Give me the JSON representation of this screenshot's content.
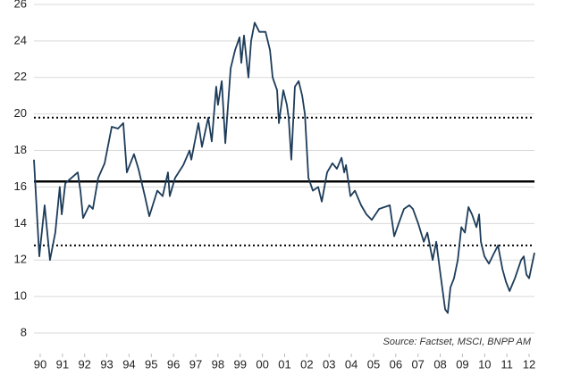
{
  "chart_data": {
    "type": "line",
    "annotation": "Source: Factset, MSCI, BNPP AM",
    "xlim": [
      1989.72,
      2012.24
    ],
    "ylim": [
      8,
      26
    ],
    "yticks": [
      8,
      10,
      12,
      14,
      16,
      18,
      20,
      22,
      24,
      26
    ],
    "xticks": [
      {
        "value": 1990,
        "label": "90"
      },
      {
        "value": 1991,
        "label": "91"
      },
      {
        "value": 1992,
        "label": "92"
      },
      {
        "value": 1993,
        "label": "93"
      },
      {
        "value": 1994,
        "label": "94"
      },
      {
        "value": 1995,
        "label": "95"
      },
      {
        "value": 1996,
        "label": "96"
      },
      {
        "value": 1997,
        "label": "97"
      },
      {
        "value": 1998,
        "label": "98"
      },
      {
        "value": 1999,
        "label": "99"
      },
      {
        "value": 2000,
        "label": "00"
      },
      {
        "value": 2001,
        "label": "01"
      },
      {
        "value": 2002,
        "label": "02"
      },
      {
        "value": 2003,
        "label": "03"
      },
      {
        "value": 2004,
        "label": "04"
      },
      {
        "value": 2005,
        "label": "05"
      },
      {
        "value": 2006,
        "label": "06"
      },
      {
        "value": 2007,
        "label": "07"
      },
      {
        "value": 2008,
        "label": "08"
      },
      {
        "value": 2009,
        "label": "09"
      },
      {
        "value": 2010,
        "label": "10"
      },
      {
        "value": 2011,
        "label": "11"
      },
      {
        "value": 2012,
        "label": "12"
      }
    ],
    "grid": true,
    "reference_lines": [
      {
        "value": 19.8,
        "style": "dotted",
        "color": "#000000"
      },
      {
        "value": 16.3,
        "style": "solid",
        "color": "#000000"
      },
      {
        "value": 12.8,
        "style": "dotted",
        "color": "#000000"
      }
    ],
    "series": [
      {
        "color": "#1d3c5a",
        "x": [
          1989.72,
          1989.96,
          1990.2,
          1990.44,
          1990.68,
          1990.88,
          1990.97,
          1991.13,
          1991.41,
          1991.69,
          1991.81,
          1991.93,
          1992.21,
          1992.37,
          1992.61,
          1992.9,
          1993.22,
          1993.5,
          1993.74,
          1993.9,
          1994.22,
          1994.42,
          1994.71,
          1994.91,
          1995.27,
          1995.51,
          1995.75,
          1995.83,
          1996.07,
          1996.44,
          1996.72,
          1996.8,
          1997.12,
          1997.28,
          1997.56,
          1997.72,
          1997.92,
          1998.0,
          1998.17,
          1998.33,
          1998.57,
          1998.77,
          1998.97,
          1999.05,
          1999.17,
          1999.37,
          1999.49,
          1999.65,
          1999.86,
          2000.14,
          2000.34,
          2000.46,
          2000.66,
          2000.74,
          2000.94,
          2001.1,
          2001.18,
          2001.3,
          2001.46,
          2001.63,
          2001.79,
          2001.91,
          2002.07,
          2002.27,
          2002.51,
          2002.67,
          2002.91,
          2003.15,
          2003.35,
          2003.56,
          2003.68,
          2003.76,
          2003.96,
          2004.16,
          2004.44,
          2004.68,
          2004.92,
          2005.25,
          2005.73,
          2005.93,
          2006.13,
          2006.37,
          2006.61,
          2006.77,
          2007.01,
          2007.26,
          2007.42,
          2007.66,
          2007.82,
          2007.98,
          2008.22,
          2008.34,
          2008.46,
          2008.62,
          2008.79,
          2008.95,
          2009.11,
          2009.27,
          2009.43,
          2009.63,
          2009.75,
          2009.83,
          2009.99,
          2010.19,
          2010.39,
          2010.6,
          2010.8,
          2010.96,
          2011.12,
          2011.36,
          2011.64,
          2011.76,
          2011.88,
          2012.0,
          2012.24
        ],
        "values": [
          17.5,
          12.2,
          15.0,
          12.0,
          13.5,
          16.0,
          14.5,
          16.2,
          16.5,
          16.8,
          15.8,
          14.3,
          15.0,
          14.8,
          16.5,
          17.3,
          19.3,
          19.2,
          19.5,
          16.8,
          17.8,
          17.0,
          15.5,
          14.4,
          15.8,
          15.5,
          16.8,
          15.5,
          16.5,
          17.2,
          18.0,
          17.5,
          19.5,
          18.2,
          19.8,
          18.5,
          21.5,
          20.5,
          21.8,
          18.4,
          22.5,
          23.5,
          24.2,
          22.8,
          24.3,
          22.0,
          24.0,
          25.0,
          24.5,
          24.5,
          23.5,
          22.0,
          21.3,
          19.5,
          21.3,
          20.5,
          19.8,
          17.5,
          21.5,
          21.8,
          21.0,
          20.0,
          16.5,
          15.8,
          16.0,
          15.2,
          16.8,
          17.3,
          17.0,
          17.6,
          16.8,
          17.2,
          15.5,
          15.8,
          15.0,
          14.5,
          14.2,
          14.8,
          15.0,
          13.3,
          14.0,
          14.8,
          15.0,
          14.8,
          14.0,
          13.0,
          13.5,
          12.0,
          13.0,
          11.5,
          9.3,
          9.1,
          10.5,
          11.0,
          12.0,
          13.8,
          13.5,
          14.9,
          14.5,
          13.8,
          14.5,
          13.0,
          12.2,
          11.8,
          12.3,
          12.8,
          11.5,
          10.8,
          10.3,
          11.0,
          12.0,
          12.2,
          11.2,
          11.0,
          12.4
        ]
      }
    ]
  }
}
